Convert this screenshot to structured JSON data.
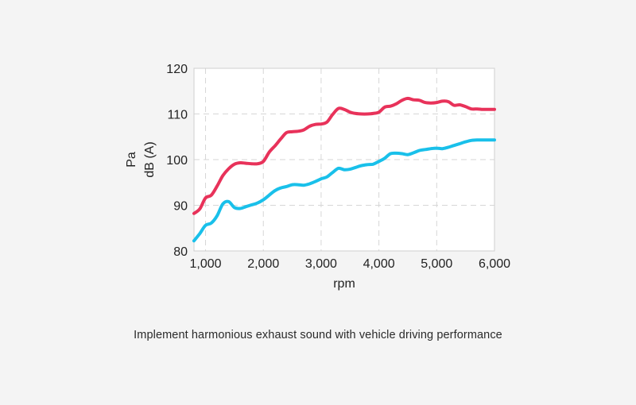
{
  "caption": "Implement harmonious exhaust sound with vehicle driving performance",
  "chart_data": {
    "type": "line",
    "title": "",
    "xlabel": "rpm",
    "ylabel_line1": "Pa",
    "ylabel_line2": "dB (A)",
    "xlim": [
      800,
      6000
    ],
    "ylim": [
      80,
      120
    ],
    "x_ticks": [
      1000,
      2000,
      3000,
      4000,
      5000,
      6000
    ],
    "x_tick_labels": [
      "1,000",
      "2,000",
      "3,000",
      "4,000",
      "5,000",
      "6,000"
    ],
    "y_ticks": [
      80,
      90,
      100,
      110,
      120
    ],
    "y_tick_labels": [
      "80",
      "90",
      "100",
      "110",
      "120"
    ],
    "grid": true,
    "series": [
      {
        "name": "red",
        "color": "#e8325a",
        "points": [
          [
            800,
            88.2
          ],
          [
            900,
            89.2
          ],
          [
            1000,
            91.6
          ],
          [
            1100,
            92.2
          ],
          [
            1200,
            94.2
          ],
          [
            1300,
            96.5
          ],
          [
            1400,
            98.0
          ],
          [
            1500,
            99.0
          ],
          [
            1600,
            99.3
          ],
          [
            1700,
            99.2
          ],
          [
            1800,
            99.1
          ],
          [
            1900,
            99.1
          ],
          [
            2000,
            99.6
          ],
          [
            2100,
            101.6
          ],
          [
            2200,
            103.0
          ],
          [
            2300,
            104.5
          ],
          [
            2400,
            105.9
          ],
          [
            2500,
            106.1
          ],
          [
            2600,
            106.2
          ],
          [
            2700,
            106.5
          ],
          [
            2800,
            107.3
          ],
          [
            2900,
            107.7
          ],
          [
            3000,
            107.8
          ],
          [
            3100,
            108.2
          ],
          [
            3200,
            109.9
          ],
          [
            3300,
            111.2
          ],
          [
            3400,
            111.0
          ],
          [
            3500,
            110.4
          ],
          [
            3600,
            110.1
          ],
          [
            3700,
            110.0
          ],
          [
            3800,
            110.0
          ],
          [
            3900,
            110.1
          ],
          [
            4000,
            110.4
          ],
          [
            4100,
            111.5
          ],
          [
            4200,
            111.7
          ],
          [
            4300,
            112.2
          ],
          [
            4400,
            113.0
          ],
          [
            4500,
            113.4
          ],
          [
            4600,
            113.1
          ],
          [
            4700,
            113.0
          ],
          [
            4800,
            112.5
          ],
          [
            4900,
            112.4
          ],
          [
            5000,
            112.5
          ],
          [
            5100,
            112.8
          ],
          [
            5200,
            112.7
          ],
          [
            5300,
            111.9
          ],
          [
            5400,
            112.0
          ],
          [
            5500,
            111.6
          ],
          [
            5600,
            111.1
          ],
          [
            5700,
            111.1
          ],
          [
            5800,
            111.0
          ],
          [
            5900,
            111.0
          ],
          [
            6000,
            111.0
          ]
        ]
      },
      {
        "name": "blue",
        "color": "#19c0ea",
        "points": [
          [
            800,
            82.2
          ],
          [
            900,
            83.8
          ],
          [
            1000,
            85.6
          ],
          [
            1100,
            86.1
          ],
          [
            1200,
            87.7
          ],
          [
            1300,
            90.3
          ],
          [
            1400,
            90.8
          ],
          [
            1500,
            89.5
          ],
          [
            1600,
            89.3
          ],
          [
            1700,
            89.7
          ],
          [
            1800,
            90.1
          ],
          [
            1900,
            90.5
          ],
          [
            2000,
            91.2
          ],
          [
            2100,
            92.2
          ],
          [
            2200,
            93.2
          ],
          [
            2300,
            93.8
          ],
          [
            2400,
            94.1
          ],
          [
            2500,
            94.5
          ],
          [
            2600,
            94.5
          ],
          [
            2700,
            94.4
          ],
          [
            2800,
            94.7
          ],
          [
            2900,
            95.2
          ],
          [
            3000,
            95.8
          ],
          [
            3100,
            96.2
          ],
          [
            3200,
            97.2
          ],
          [
            3300,
            98.1
          ],
          [
            3400,
            97.8
          ],
          [
            3500,
            97.9
          ],
          [
            3600,
            98.3
          ],
          [
            3700,
            98.7
          ],
          [
            3800,
            98.9
          ],
          [
            3900,
            99.0
          ],
          [
            4000,
            99.6
          ],
          [
            4100,
            100.3
          ],
          [
            4200,
            101.3
          ],
          [
            4300,
            101.4
          ],
          [
            4400,
            101.3
          ],
          [
            4500,
            101.1
          ],
          [
            4600,
            101.5
          ],
          [
            4700,
            102.0
          ],
          [
            4800,
            102.2
          ],
          [
            4900,
            102.4
          ],
          [
            5000,
            102.5
          ],
          [
            5100,
            102.4
          ],
          [
            5200,
            102.7
          ],
          [
            5300,
            103.1
          ],
          [
            5400,
            103.5
          ],
          [
            5500,
            103.9
          ],
          [
            5600,
            104.2
          ],
          [
            5700,
            104.3
          ],
          [
            5800,
            104.3
          ],
          [
            5900,
            104.3
          ],
          [
            6000,
            104.3
          ]
        ]
      }
    ]
  }
}
